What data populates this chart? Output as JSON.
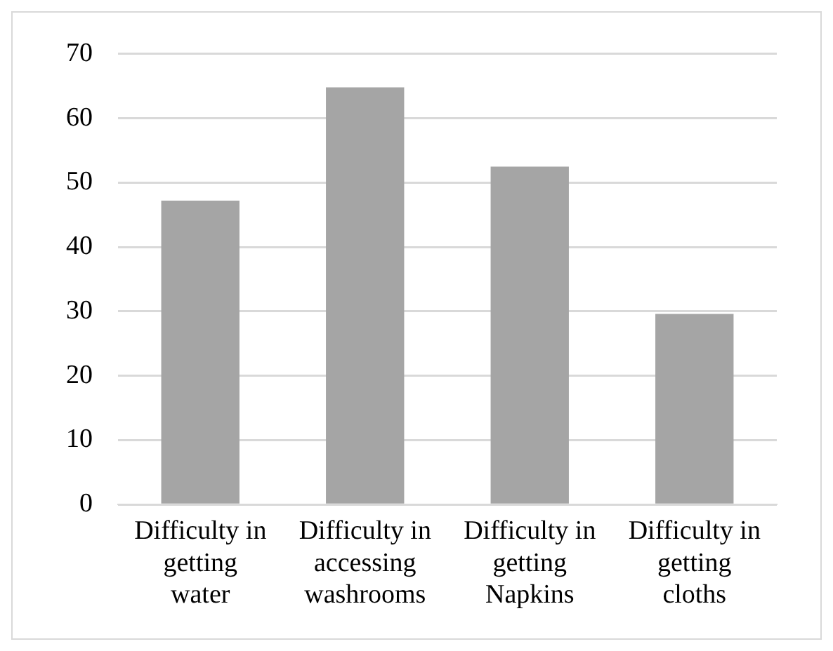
{
  "chart_data": {
    "type": "bar",
    "categories": [
      "Difficulty in getting water",
      "Difficulty in accessing washrooms",
      "Difficulty in getting Napkins",
      "Difficulty in getting cloths"
    ],
    "values": [
      47.2,
      64.8,
      52.5,
      29.6
    ],
    "color": "#a5a5a5",
    "ylim": [
      0,
      70
    ],
    "yticks": [
      0,
      10,
      20,
      30,
      40,
      50,
      60,
      70
    ],
    "grid": "y",
    "legend": false
  }
}
